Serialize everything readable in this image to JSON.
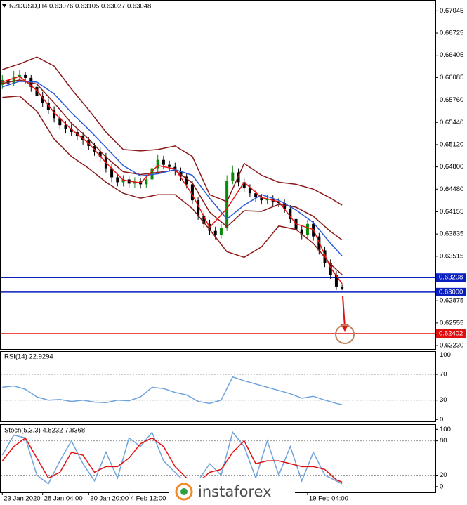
{
  "chart_data": [
    {
      "type": "candlestick",
      "title": "NZDUSD,H4  0.63076 0.63105 0.63027 0.63048",
      "x": [
        0,
        1,
        2,
        3,
        4,
        5,
        6,
        7,
        8,
        9,
        10,
        11,
        12,
        13,
        14,
        15,
        16,
        17,
        18,
        19,
        20,
        21,
        22,
        23,
        24,
        25,
        26,
        27,
        28,
        29,
        30,
        31,
        32,
        33,
        34,
        35,
        36,
        37,
        38,
        39,
        40,
        41,
        42,
        43,
        44,
        45,
        46,
        47,
        48,
        49,
        50,
        51,
        52,
        53,
        54,
        55,
        56,
        57,
        58,
        59
      ],
      "open": [
        0.6598,
        0.6605,
        0.66,
        0.661,
        0.6612,
        0.6608,
        0.6595,
        0.6582,
        0.6572,
        0.6562,
        0.655,
        0.654,
        0.6535,
        0.653,
        0.6524,
        0.6518,
        0.651,
        0.6502,
        0.6495,
        0.6478,
        0.6465,
        0.6458,
        0.6462,
        0.6456,
        0.6459,
        0.6455,
        0.6462,
        0.6478,
        0.649,
        0.6483,
        0.648,
        0.6474,
        0.6466,
        0.6455,
        0.6432,
        0.641,
        0.6398,
        0.6388,
        0.6382,
        0.6392,
        0.646,
        0.6472,
        0.6458,
        0.645,
        0.6442,
        0.6436,
        0.6432,
        0.6434,
        0.643,
        0.6428,
        0.642,
        0.6405,
        0.639,
        0.6382,
        0.6398,
        0.638,
        0.636,
        0.6342,
        0.6325,
        0.63076
      ],
      "high": [
        0.6612,
        0.6611,
        0.6618,
        0.662,
        0.6616,
        0.6612,
        0.66,
        0.6588,
        0.6578,
        0.6567,
        0.6556,
        0.6546,
        0.6541,
        0.6536,
        0.653,
        0.6523,
        0.6515,
        0.6508,
        0.65,
        0.6484,
        0.647,
        0.6468,
        0.6467,
        0.6465,
        0.6464,
        0.6468,
        0.6485,
        0.6498,
        0.6496,
        0.6489,
        0.6486,
        0.6479,
        0.647,
        0.646,
        0.6437,
        0.6416,
        0.6404,
        0.6394,
        0.6398,
        0.6468,
        0.6482,
        0.6478,
        0.6463,
        0.6455,
        0.6447,
        0.6441,
        0.644,
        0.6439,
        0.6435,
        0.6433,
        0.6425,
        0.641,
        0.6395,
        0.6404,
        0.6402,
        0.6385,
        0.6365,
        0.6347,
        0.633,
        0.63105
      ],
      "low": [
        0.6592,
        0.6594,
        0.6596,
        0.6603,
        0.66,
        0.6588,
        0.6576,
        0.6566,
        0.6556,
        0.6544,
        0.6534,
        0.6528,
        0.6524,
        0.6518,
        0.6512,
        0.6504,
        0.6496,
        0.6488,
        0.6472,
        0.6458,
        0.6452,
        0.6452,
        0.645,
        0.645,
        0.6449,
        0.645,
        0.6458,
        0.6472,
        0.6477,
        0.6474,
        0.6468,
        0.646,
        0.6449,
        0.6426,
        0.6404,
        0.6392,
        0.6382,
        0.6376,
        0.6377,
        0.6388,
        0.6455,
        0.6452,
        0.6444,
        0.6437,
        0.643,
        0.6426,
        0.6427,
        0.6424,
        0.6422,
        0.6414,
        0.6399,
        0.6384,
        0.6376,
        0.6378,
        0.6374,
        0.6354,
        0.6336,
        0.6319,
        0.6303,
        0.63027
      ],
      "close": [
        0.6605,
        0.66,
        0.661,
        0.6612,
        0.6608,
        0.6595,
        0.6582,
        0.6572,
        0.6562,
        0.655,
        0.654,
        0.6535,
        0.653,
        0.6524,
        0.6518,
        0.651,
        0.6502,
        0.6495,
        0.6478,
        0.6465,
        0.6458,
        0.6462,
        0.6456,
        0.6459,
        0.6455,
        0.6462,
        0.6478,
        0.649,
        0.6483,
        0.648,
        0.6474,
        0.6466,
        0.6455,
        0.6432,
        0.641,
        0.6398,
        0.6388,
        0.6382,
        0.6392,
        0.646,
        0.6472,
        0.6458,
        0.645,
        0.6442,
        0.6436,
        0.6432,
        0.6434,
        0.643,
        0.6428,
        0.642,
        0.6405,
        0.639,
        0.6382,
        0.6398,
        0.638,
        0.636,
        0.6342,
        0.6325,
        0.6308,
        0.63048
      ],
      "up_color": "#0a8a0a",
      "down_color": "#000000",
      "overlays": [
        {
          "color": "#8b1a1a",
          "x": [
            0,
            3,
            6,
            9,
            12,
            15,
            18,
            21,
            24,
            27,
            30,
            33,
            36,
            39,
            42,
            45,
            48,
            51,
            54,
            57,
            59
          ],
          "values": [
            0.662,
            0.6628,
            0.6638,
            0.6625,
            0.6592,
            0.6562,
            0.653,
            0.6505,
            0.6503,
            0.6505,
            0.651,
            0.6495,
            0.644,
            0.643,
            0.6485,
            0.6468,
            0.6458,
            0.6455,
            0.6448,
            0.6435,
            0.6425
          ]
        },
        {
          "color": "#8b1a1a",
          "x": [
            0,
            3,
            6,
            9,
            12,
            15,
            18,
            21,
            24,
            27,
            30,
            33,
            36,
            39,
            42,
            45,
            48,
            51,
            54,
            57,
            59
          ],
          "values": [
            0.66,
            0.6605,
            0.6599,
            0.6572,
            0.6543,
            0.652,
            0.6494,
            0.6473,
            0.6469,
            0.6472,
            0.6475,
            0.6457,
            0.6415,
            0.6394,
            0.6417,
            0.6416,
            0.6426,
            0.6422,
            0.6409,
            0.6387,
            0.6375
          ]
        },
        {
          "color": "#8b1a1a",
          "x": [
            0,
            3,
            6,
            9,
            12,
            15,
            18,
            21,
            24,
            27,
            30,
            33,
            36,
            39,
            42,
            45,
            48,
            51,
            54,
            57,
            59
          ],
          "values": [
            0.658,
            0.6582,
            0.656,
            0.652,
            0.6495,
            0.6478,
            0.6458,
            0.6442,
            0.6435,
            0.644,
            0.644,
            0.642,
            0.639,
            0.6358,
            0.635,
            0.6365,
            0.6395,
            0.639,
            0.637,
            0.634,
            0.6325
          ]
        },
        {
          "color": "#2a5bdc",
          "x": [
            0,
            3,
            6,
            9,
            12,
            15,
            18,
            21,
            24,
            27,
            30,
            33,
            36,
            39,
            42,
            45,
            48,
            51,
            54,
            57,
            59
          ],
          "values": [
            0.6595,
            0.6603,
            0.6602,
            0.6585,
            0.6558,
            0.6534,
            0.6508,
            0.6482,
            0.6467,
            0.647,
            0.6476,
            0.6468,
            0.6435,
            0.6405,
            0.6425,
            0.644,
            0.6432,
            0.6418,
            0.64,
            0.637,
            0.6352
          ]
        },
        {
          "color": "#ee1111",
          "x": [
            0,
            3,
            6,
            9,
            12,
            15,
            18,
            21,
            24,
            27,
            30,
            33,
            36,
            39,
            42,
            45,
            48,
            51,
            54,
            57,
            59
          ],
          "values": [
            0.6602,
            0.661,
            0.659,
            0.6558,
            0.6534,
            0.6514,
            0.6486,
            0.6461,
            0.6457,
            0.6482,
            0.6477,
            0.644,
            0.6393,
            0.642,
            0.6458,
            0.6436,
            0.643,
            0.6398,
            0.639,
            0.6335,
            0.6312
          ]
        }
      ],
      "levels": [
        {
          "value": 0.63208,
          "color": "#0a1fbf"
        },
        {
          "value": 0.63,
          "label": "0.63000",
          "color": "#0a1fbf"
        },
        {
          "value": 0.62402,
          "color": "#e01010"
        }
      ],
      "xlim": [
        -0.4,
        75.2
      ],
      "ylim": [
        0.6218,
        0.672
      ],
      "yticks": [
        0.67045,
        0.66725,
        0.66405,
        0.66085,
        {
          "value": 0.6576,
          "label": "0.65760"
        },
        {
          "value": 0.6544,
          "label": "0.65440"
        },
        {
          "value": 0.6512,
          "label": "0.65120"
        },
        {
          "value": 0.648,
          "label": "0.64800"
        },
        {
          "value": 0.6448,
          "label": "0.64480"
        },
        0.64155,
        0.63835,
        0.63515,
        0.62875,
        0.62555,
        {
          "value": 0.6223,
          "label": "0.62230"
        }
      ]
    },
    {
      "type": "line",
      "title": "RSI(14) 22.9294",
      "series": [
        {
          "color": "#6fa3dc",
          "x": [
            0,
            2,
            4,
            6,
            8,
            10,
            12,
            14,
            16,
            18,
            20,
            22,
            24,
            26,
            28,
            30,
            32,
            34,
            36,
            38,
            40,
            42,
            44,
            46,
            48,
            50,
            52,
            54,
            56,
            58,
            59
          ],
          "values": [
            50,
            52,
            47,
            35,
            30,
            31,
            28,
            30,
            27,
            26,
            30,
            29,
            35,
            50,
            48,
            42,
            38,
            28,
            25,
            30,
            66,
            60,
            55,
            50,
            45,
            40,
            33,
            36,
            30,
            25,
            22.9294
          ]
        }
      ],
      "levels": [
        70,
        30
      ],
      "xlim": [
        -0.4,
        75.2
      ],
      "ylim": [
        -3,
        106
      ],
      "yticks": [
        100,
        70,
        30,
        0
      ]
    },
    {
      "type": "line",
      "title": "Stoch(5,3,3) 4.8232 7.8368",
      "series": [
        {
          "color": "#6fa3dc",
          "x": [
            0,
            2,
            4,
            6,
            8,
            10,
            12,
            14,
            16,
            18,
            20,
            22,
            24,
            26,
            28,
            30,
            32,
            34,
            36,
            38,
            40,
            42,
            44,
            46,
            48,
            50,
            52,
            54,
            56,
            58,
            59
          ],
          "values": [
            55,
            90,
            85,
            20,
            5,
            45,
            80,
            40,
            10,
            60,
            15,
            85,
            70,
            95,
            45,
            25,
            5,
            10,
            40,
            20,
            95,
            70,
            15,
            80,
            20,
            70,
            10,
            60,
            20,
            10,
            4.8232
          ]
        },
        {
          "color": "#e01010",
          "x": [
            0,
            2,
            4,
            6,
            8,
            10,
            12,
            14,
            16,
            18,
            20,
            22,
            24,
            26,
            28,
            30,
            32,
            34,
            36,
            38,
            40,
            42,
            44,
            46,
            48,
            50,
            52,
            54,
            56,
            58,
            59
          ],
          "values": [
            45,
            70,
            85,
            50,
            15,
            25,
            60,
            55,
            25,
            35,
            35,
            50,
            75,
            85,
            70,
            35,
            15,
            8,
            25,
            30,
            60,
            80,
            40,
            45,
            45,
            40,
            35,
            35,
            30,
            12,
            7.8368
          ]
        }
      ],
      "levels": [
        80,
        20
      ],
      "xlim": [
        -0.4,
        75.2
      ],
      "ylim": [
        -10,
        109
      ],
      "yticks": [
        100,
        80,
        20,
        0
      ],
      "xticks": [
        {
          "value": 0,
          "label": "23 Jan 2020"
        },
        {
          "value": 7,
          "label": "28 Jan 04:00"
        },
        {
          "value": 15,
          "label": "30 Jan 20:00"
        },
        {
          "value": 22,
          "label": "4 Feb 12:00"
        },
        {
          "value": 53,
          "label": "19 Feb 04:00"
        }
      ]
    }
  ],
  "watermark": "instaforex"
}
